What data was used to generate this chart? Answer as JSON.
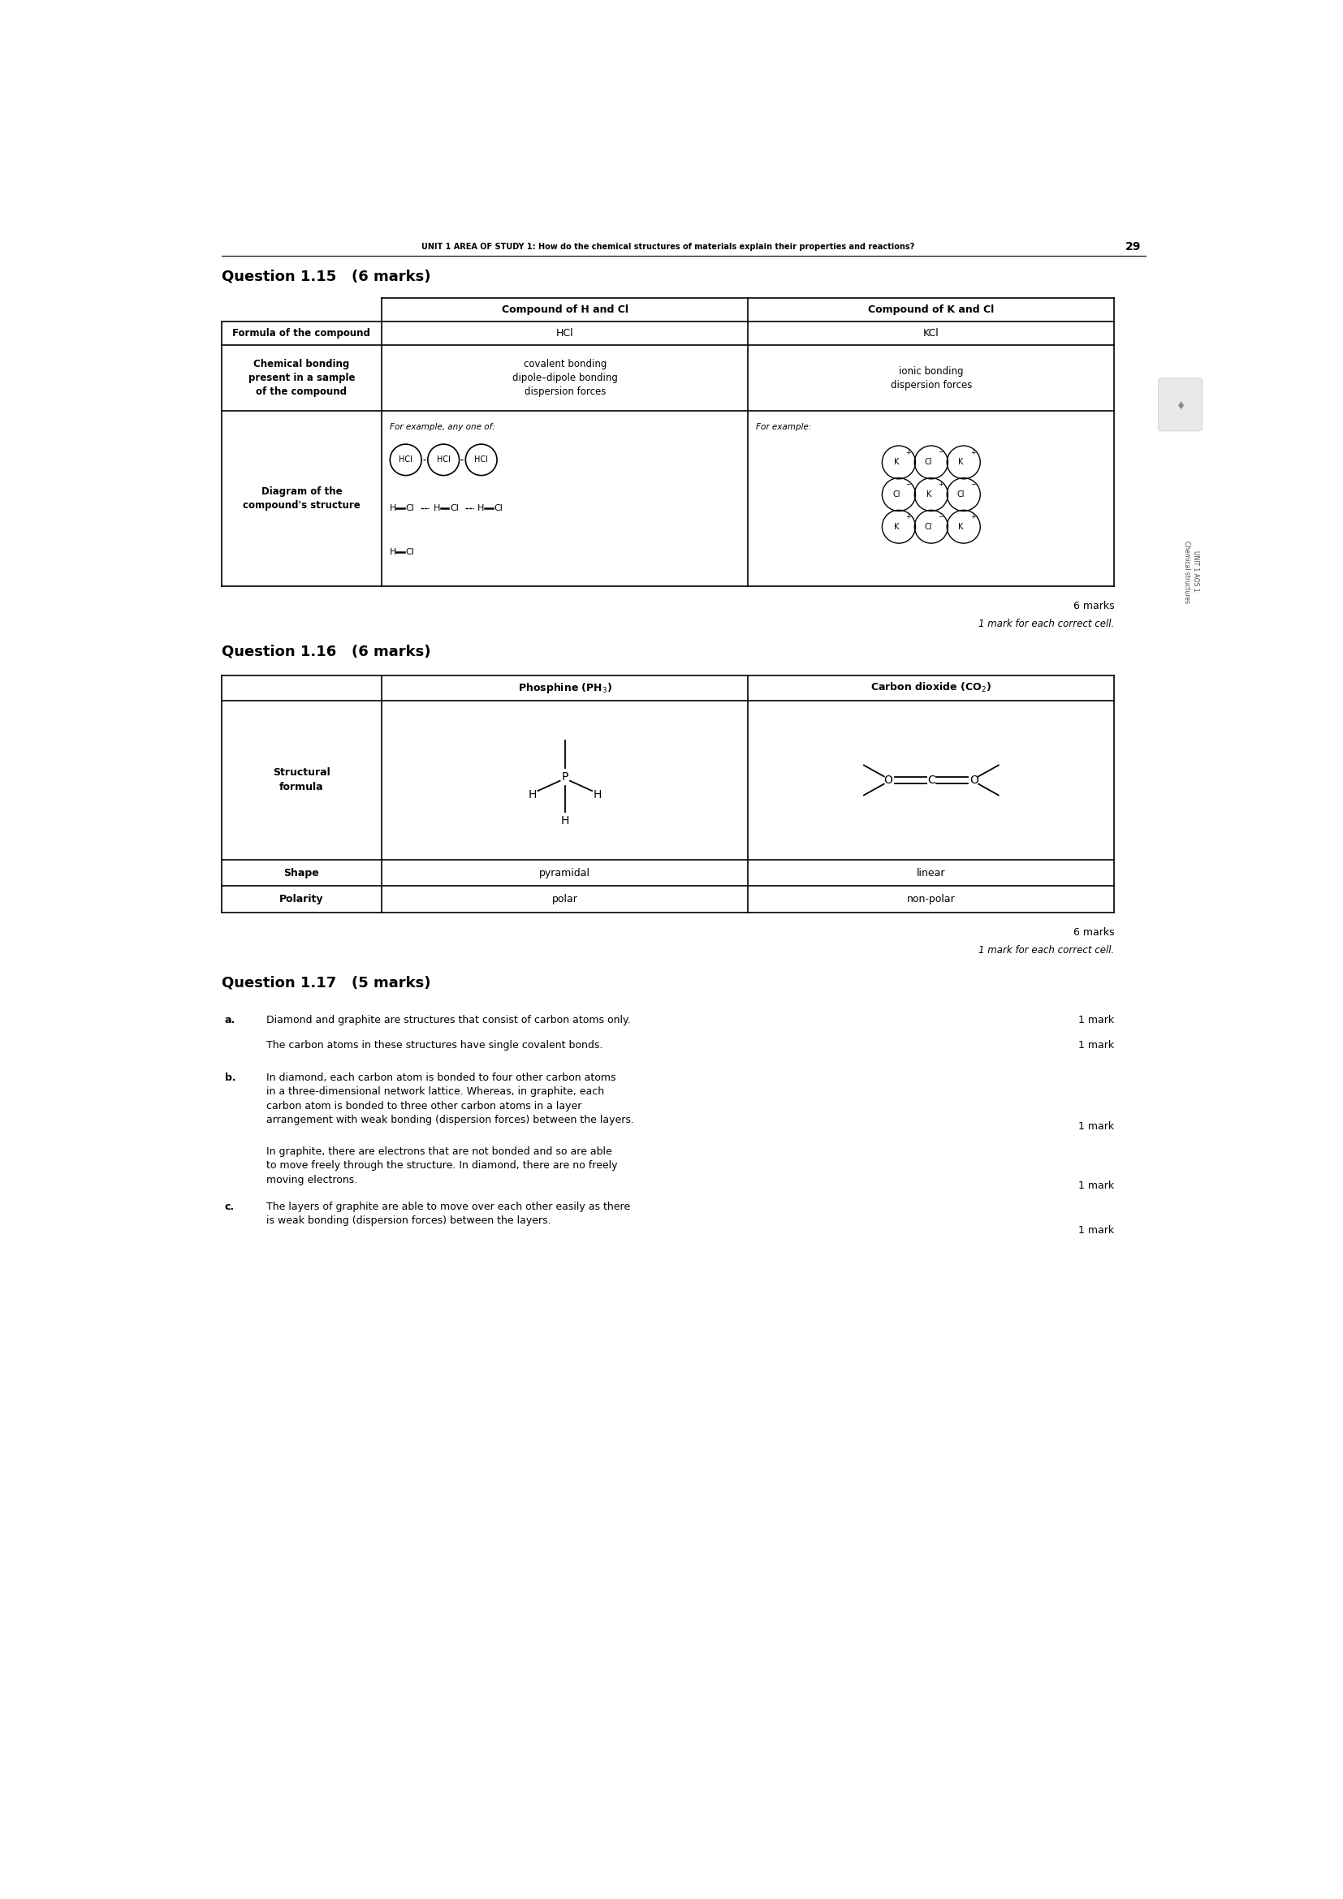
{
  "page_width": 16.54,
  "page_height": 23.39,
  "bg_color": "#ffffff",
  "header_text": "UNIT 1 AREA OF STUDY 1: How do the chemical structures of materials explain their properties and reactions?",
  "page_number": "29",
  "q115_title": "Question 1.15   (6 marks)",
  "q116_title": "Question 1.16   (6 marks)",
  "q117_title": "Question 1.17   (5 marks)",
  "marks_6": "6 marks",
  "marks_note": "1 mark for each correct cell.",
  "q117_a_label": "a.",
  "q117_a_text1": "Diamond and graphite are structures that consist of carbon atoms only.",
  "q117_a_mark1": "1 mark",
  "q117_a_text2": "The carbon atoms in these structures have single covalent bonds.",
  "q117_a_mark2": "1 mark",
  "q117_b_label": "b.",
  "q117_b_text1": "In diamond, each carbon atom is bonded to four other carbon atoms\nin a three-dimensional network lattice. Whereas, in graphite, each\ncarbon atom is bonded to three other carbon atoms in a layer\narrangement with weak bonding (dispersion forces) between the layers.",
  "q117_b_mark1": "1 mark",
  "q117_b_text2": "In graphite, there are electrons that are not bonded and so are able\nto move freely through the structure. In diamond, there are no freely\nmoving electrons.",
  "q117_b_mark2": "1 mark",
  "q117_c_label": "c.",
  "q117_c_text": "The layers of graphite are able to move over each other easily as there\nis weak bonding (dispersion forces) between the layers.",
  "q117_c_mark": "1 mark"
}
